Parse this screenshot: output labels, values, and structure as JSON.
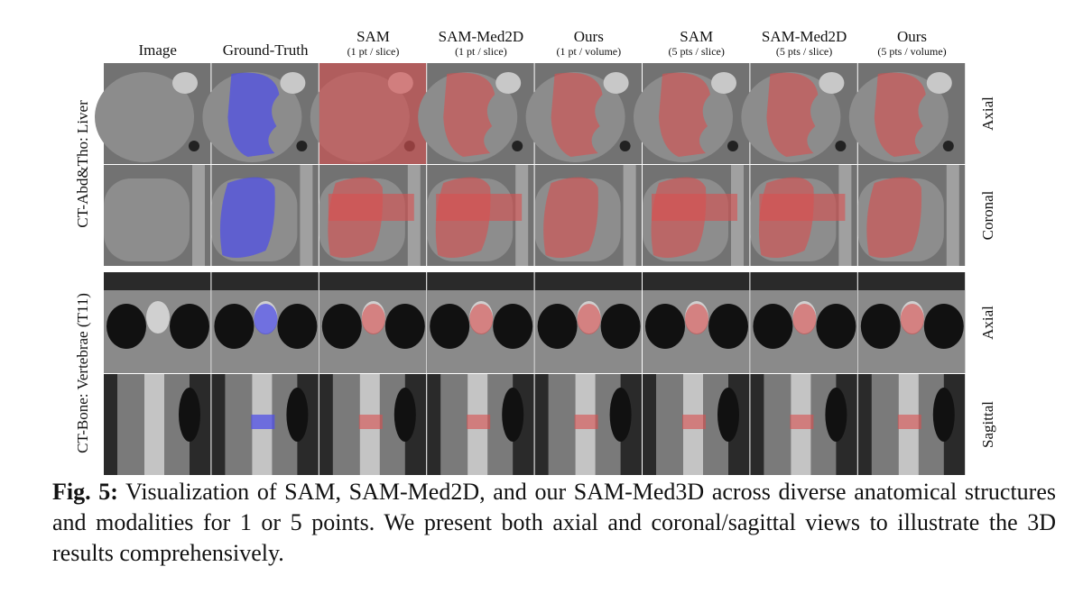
{
  "figure": {
    "columns": [
      {
        "title": "Image"
      },
      {
        "title": "Ground-Truth"
      },
      {
        "title": "SAM",
        "subtitle": "(1 pt / slice)"
      },
      {
        "title": "SAM-Med2D",
        "subtitle": "(1 pt / slice)"
      },
      {
        "title": "Ours",
        "subtitle": "(1 pt / volume)"
      },
      {
        "title": "SAM",
        "subtitle": "(5 pts / slice)"
      },
      {
        "title": "SAM-Med2D",
        "subtitle": "(5 pts / slice)"
      },
      {
        "title": "Ours",
        "subtitle": "(5 pts / volume)"
      }
    ],
    "groups": [
      {
        "label": "CT-Abd&Tho: Liver",
        "views": [
          "Axial",
          "Coronal"
        ]
      },
      {
        "label": "CT-Bone: Vertebrae (T11)",
        "views": [
          "Axial",
          "Sagittal"
        ]
      }
    ]
  },
  "caption": {
    "label": "Fig. 5:",
    "text": "Visualization of SAM, SAM-Med2D, and our SAM-Med3D across diverse anatomical structures and modalities for 1 or 5 points. We present both axial and coronal/sagittal views to illustrate the 3D results comprehensively."
  }
}
